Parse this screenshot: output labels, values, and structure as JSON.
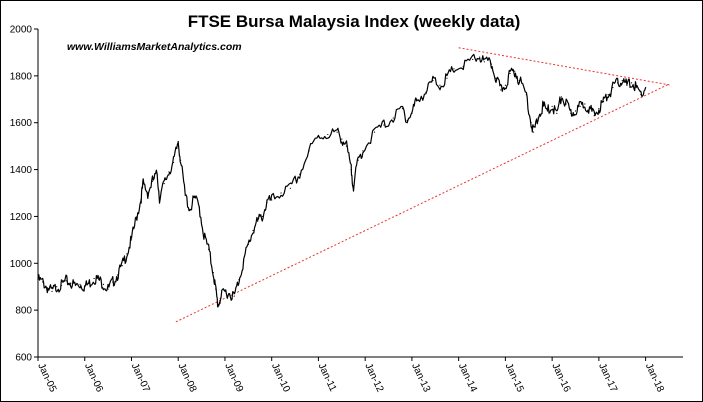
{
  "chart_data": {
    "type": "line",
    "title": "FTSE Bursa Malaysia Index (weekly data)",
    "source": "www.WilliamsMarketAnalytics.com",
    "xlabel": "",
    "ylabel": "",
    "ylim": [
      600,
      2000
    ],
    "yticks": [
      600,
      800,
      1000,
      1200,
      1400,
      1600,
      1800,
      2000
    ],
    "xlim": [
      2005.0,
      2018.0
    ],
    "xticks": [
      {
        "label": "Jan-05",
        "x": 2005
      },
      {
        "label": "Jan-06",
        "x": 2006
      },
      {
        "label": "Jan-07",
        "x": 2007
      },
      {
        "label": "Jan-08",
        "x": 2008
      },
      {
        "label": "Jan-09",
        "x": 2009
      },
      {
        "label": "Jan-10",
        "x": 2010
      },
      {
        "label": "Jan-11",
        "x": 2011
      },
      {
        "label": "Jan-12",
        "x": 2012
      },
      {
        "label": "Jan-13",
        "x": 2013
      },
      {
        "label": "Jan-14",
        "x": 2014
      },
      {
        "label": "Jan-15",
        "x": 2015
      },
      {
        "label": "Jan-16",
        "x": 2016
      },
      {
        "label": "Jan-17",
        "x": 2017
      },
      {
        "label": "Jan-18",
        "x": 2018
      }
    ],
    "grid": false,
    "colors": {
      "series": "#000000",
      "trendline": "#e8352e"
    },
    "series": [
      {
        "values": [
          [
            2005.0,
            930
          ],
          [
            2005.1,
            920
          ],
          [
            2005.2,
            895
          ],
          [
            2005.3,
            880
          ],
          [
            2005.4,
            900
          ],
          [
            2005.5,
            905
          ],
          [
            2005.6,
            925
          ],
          [
            2005.7,
            915
          ],
          [
            2005.8,
            905
          ],
          [
            2005.9,
            910
          ],
          [
            2006.0,
            900
          ],
          [
            2006.1,
            915
          ],
          [
            2006.2,
            935
          ],
          [
            2006.3,
            930
          ],
          [
            2006.4,
            910
          ],
          [
            2006.5,
            890
          ],
          [
            2006.6,
            920
          ],
          [
            2006.7,
            950
          ],
          [
            2006.8,
            990
          ],
          [
            2006.9,
            1040
          ],
          [
            2007.0,
            1100
          ],
          [
            2007.1,
            1190
          ],
          [
            2007.2,
            1270
          ],
          [
            2007.25,
            1340
          ],
          [
            2007.35,
            1300
          ],
          [
            2007.45,
            1350
          ],
          [
            2007.55,
            1380
          ],
          [
            2007.6,
            1280
          ],
          [
            2007.7,
            1340
          ],
          [
            2007.8,
            1390
          ],
          [
            2007.9,
            1430
          ],
          [
            2008.0,
            1520
          ],
          [
            2008.05,
            1440
          ],
          [
            2008.15,
            1290
          ],
          [
            2008.25,
            1230
          ],
          [
            2008.35,
            1280
          ],
          [
            2008.45,
            1240
          ],
          [
            2008.55,
            1120
          ],
          [
            2008.65,
            1060
          ],
          [
            2008.75,
            960
          ],
          [
            2008.8,
            890
          ],
          [
            2008.85,
            820
          ],
          [
            2008.9,
            850
          ],
          [
            2009.0,
            880
          ],
          [
            2009.1,
            870
          ],
          [
            2009.2,
            860
          ],
          [
            2009.3,
            930
          ],
          [
            2009.4,
            1010
          ],
          [
            2009.5,
            1080
          ],
          [
            2009.6,
            1140
          ],
          [
            2009.7,
            1180
          ],
          [
            2009.8,
            1200
          ],
          [
            2009.9,
            1260
          ],
          [
            2010.0,
            1270
          ],
          [
            2010.2,
            1300
          ],
          [
            2010.4,
            1320
          ],
          [
            2010.6,
            1380
          ],
          [
            2010.8,
            1480
          ],
          [
            2011.0,
            1540
          ],
          [
            2011.2,
            1550
          ],
          [
            2011.4,
            1560
          ],
          [
            2011.5,
            1530
          ],
          [
            2011.6,
            1500
          ],
          [
            2011.7,
            1400
          ],
          [
            2011.75,
            1330
          ],
          [
            2011.85,
            1440
          ],
          [
            2011.95,
            1480
          ],
          [
            2012.2,
            1560
          ],
          [
            2012.4,
            1590
          ],
          [
            2012.6,
            1620
          ],
          [
            2012.8,
            1660
          ],
          [
            2012.9,
            1610
          ],
          [
            2013.0,
            1640
          ],
          [
            2013.1,
            1700
          ],
          [
            2013.3,
            1730
          ],
          [
            2013.45,
            1780
          ],
          [
            2013.6,
            1760
          ],
          [
            2013.75,
            1790
          ],
          [
            2013.9,
            1830
          ],
          [
            2014.1,
            1840
          ],
          [
            2014.3,
            1870
          ],
          [
            2014.45,
            1880
          ],
          [
            2014.55,
            1860
          ],
          [
            2014.7,
            1850
          ],
          [
            2014.8,
            1790
          ],
          [
            2014.9,
            1740
          ],
          [
            2015.0,
            1760
          ],
          [
            2015.1,
            1810
          ],
          [
            2015.2,
            1820
          ],
          [
            2015.3,
            1780
          ],
          [
            2015.45,
            1720
          ],
          [
            2015.55,
            1600
          ],
          [
            2015.6,
            1560
          ],
          [
            2015.7,
            1620
          ],
          [
            2015.8,
            1670
          ],
          [
            2015.9,
            1650
          ],
          [
            2016.0,
            1670
          ],
          [
            2016.1,
            1640
          ],
          [
            2016.2,
            1710
          ],
          [
            2016.3,
            1680
          ],
          [
            2016.4,
            1640
          ],
          [
            2016.5,
            1650
          ],
          [
            2016.6,
            1670
          ],
          [
            2016.7,
            1680
          ],
          [
            2016.8,
            1660
          ],
          [
            2016.9,
            1630
          ],
          [
            2017.0,
            1660
          ],
          [
            2017.1,
            1690
          ],
          [
            2017.2,
            1720
          ],
          [
            2017.3,
            1750
          ],
          [
            2017.4,
            1770
          ],
          [
            2017.5,
            1780
          ],
          [
            2017.6,
            1760
          ],
          [
            2017.7,
            1770
          ],
          [
            2017.8,
            1750
          ],
          [
            2017.9,
            1720
          ],
          [
            2018.0,
            1750
          ]
        ]
      }
    ],
    "trendlines": [
      {
        "x1": 2007.95,
        "y1": 750,
        "x2": 2018.5,
        "y2": 1765
      },
      {
        "x1": 2014.0,
        "y1": 1920,
        "x2": 2018.55,
        "y2": 1760
      }
    ]
  }
}
